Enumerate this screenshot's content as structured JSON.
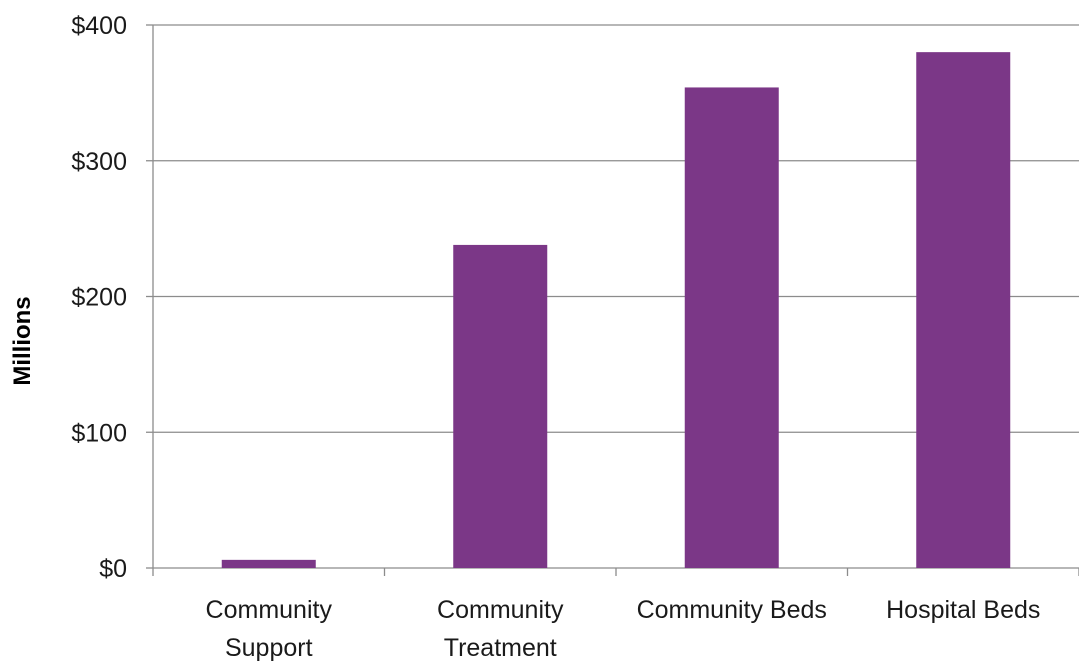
{
  "chart_data": {
    "type": "bar",
    "categories": [
      [
        "Community",
        "Support"
      ],
      [
        "Community",
        "Treatment"
      ],
      [
        "Community Beds"
      ],
      [
        "Hospital Beds"
      ]
    ],
    "values": [
      6,
      238,
      354,
      380
    ],
    "title": "",
    "xlabel": "",
    "ylabel": "Millions",
    "ylim": [
      0,
      400
    ],
    "yticks": [
      0,
      100,
      200,
      300,
      400
    ],
    "ytick_labels": [
      "$0",
      "$100",
      "$200",
      "$300",
      "$400"
    ],
    "grid": true,
    "bar_color": "#7b3787",
    "grid_color": "#8c8c8c"
  }
}
